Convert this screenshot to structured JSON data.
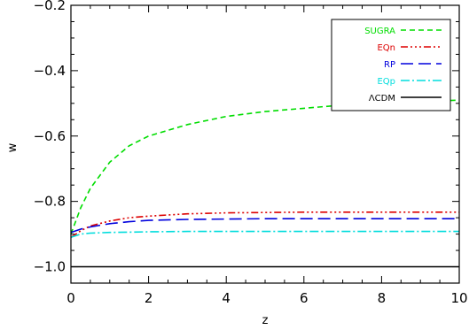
{
  "chart_data": {
    "type": "line",
    "title": "",
    "xlabel": "z",
    "ylabel": "w",
    "xlim": [
      0,
      10
    ],
    "ylim": [
      -1.05,
      -0.2
    ],
    "x_ticks": [
      0,
      2,
      4,
      6,
      8,
      10
    ],
    "x_tick_labels": [
      "0",
      "2",
      "4",
      "6",
      "8",
      "10"
    ],
    "y_ticks": [
      -1.0,
      -0.8,
      -0.6,
      -0.4,
      -0.2
    ],
    "y_tick_labels": [
      "−1.0",
      "−0.8",
      "−0.6",
      "−0.4",
      "−0.2"
    ],
    "grid": false,
    "legend_position": "top-right",
    "x": [
      0,
      0.25,
      0.5,
      1,
      1.5,
      2,
      3,
      4,
      5,
      6,
      7,
      8,
      9,
      10
    ],
    "series": [
      {
        "name": "SUGRA",
        "color": "#00dd00",
        "dash": "dashed",
        "values": [
          -0.9,
          -0.82,
          -0.76,
          -0.68,
          -0.63,
          -0.6,
          -0.565,
          -0.54,
          -0.525,
          -0.515,
          -0.505,
          -0.5,
          -0.495,
          -0.49
        ]
      },
      {
        "name": "EQn",
        "color": "#dd0000",
        "dash": "dash-dot-dot-dot",
        "values": [
          -0.91,
          -0.89,
          -0.875,
          -0.86,
          -0.85,
          -0.845,
          -0.838,
          -0.835,
          -0.834,
          -0.833,
          -0.833,
          -0.833,
          -0.833,
          -0.833
        ]
      },
      {
        "name": "RP",
        "color": "#0000dd",
        "dash": "long-dashed",
        "values": [
          -0.895,
          -0.885,
          -0.878,
          -0.868,
          -0.862,
          -0.858,
          -0.855,
          -0.854,
          -0.853,
          -0.853,
          -0.853,
          -0.853,
          -0.853,
          -0.853
        ]
      },
      {
        "name": "EQp",
        "color": "#00dddd",
        "dash": "dash-dot",
        "values": [
          -0.91,
          -0.9,
          -0.897,
          -0.895,
          -0.894,
          -0.893,
          -0.892,
          -0.892,
          -0.892,
          -0.892,
          -0.892,
          -0.892,
          -0.892,
          -0.892
        ]
      },
      {
        "name": "ΛCDM",
        "color": "#000000",
        "dash": "solid",
        "values": [
          -1.0,
          -1.0,
          -1.0,
          -1.0,
          -1.0,
          -1.0,
          -1.0,
          -1.0,
          -1.0,
          -1.0,
          -1.0,
          -1.0,
          -1.0,
          -1.0
        ]
      }
    ]
  }
}
